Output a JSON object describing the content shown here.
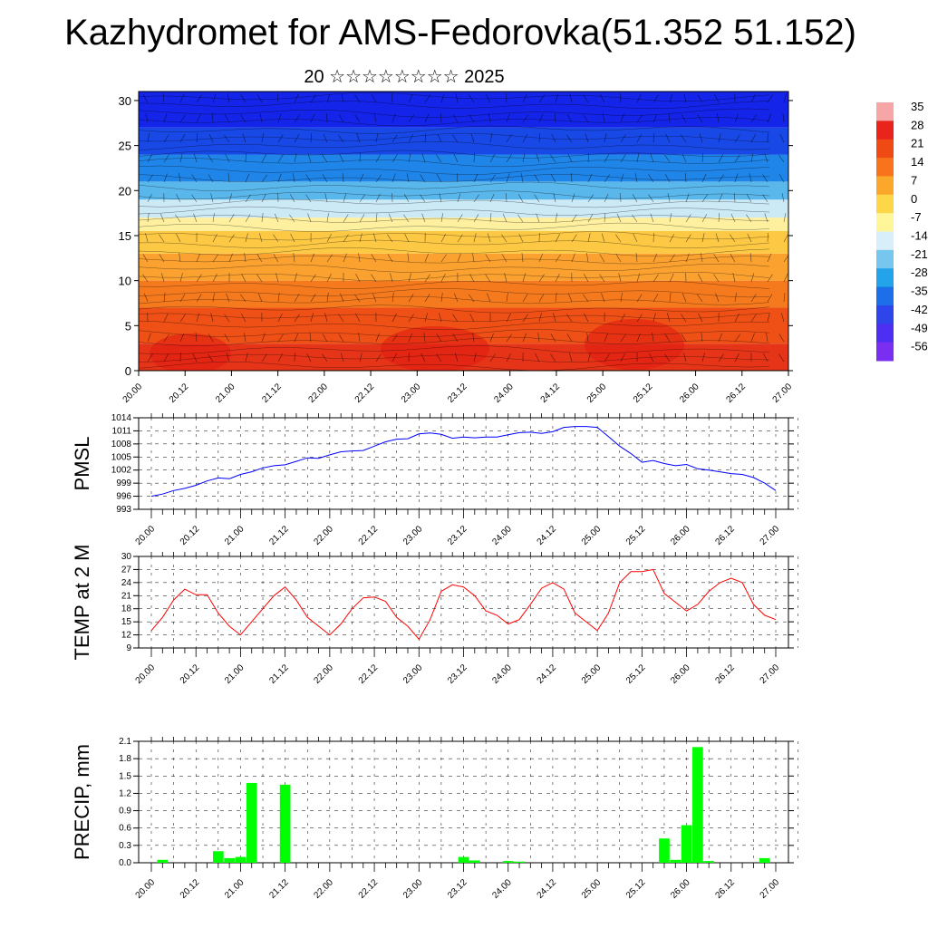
{
  "title": "Kazhydromet for AMS-Fedorovka(51.352 51.152)",
  "subtitle": "20 ☆☆☆☆☆☆☆☆ 2025",
  "time_labels": [
    "20.00",
    "20.12",
    "21.00",
    "21.12",
    "22.00",
    "22.12",
    "23.00",
    "23.12",
    "24.00",
    "24.12",
    "25.00",
    "25.12",
    "26.00",
    "26.12",
    "27.00"
  ],
  "chart_data": [
    {
      "type": "heatmap",
      "name": "cross-section",
      "y_ticks": [
        "0",
        "5",
        "10",
        "15",
        "20",
        "25",
        "30"
      ],
      "ylim": [
        0,
        31
      ],
      "colorbar": {
        "labels": [
          "35",
          "28",
          "21",
          "14",
          "7",
          "0",
          "-7",
          "-14",
          "-21",
          "-28",
          "-35",
          "-42",
          "-49",
          "-56"
        ],
        "colors": [
          "#f6a6a6",
          "#e8241c",
          "#f04a14",
          "#f7741c",
          "#fba72c",
          "#fdd748",
          "#fff69a",
          "#d8eef8",
          "#76c6ee",
          "#23a3ea",
          "#1d6fe9",
          "#2f45ec",
          "#4c2ff0",
          "#7a2ff0"
        ]
      },
      "layers": [
        {
          "z": 0,
          "color": "#e63418"
        },
        {
          "z": 3,
          "color": "#ee5016"
        },
        {
          "z": 7,
          "color": "#f57a1e"
        },
        {
          "z": 10,
          "color": "#fba130"
        },
        {
          "z": 13,
          "color": "#fdc945"
        },
        {
          "z": 15.5,
          "color": "#fff0a0"
        },
        {
          "z": 17,
          "color": "#cce9f6"
        },
        {
          "z": 19,
          "color": "#5ab7ec"
        },
        {
          "z": 21,
          "color": "#2085e8"
        },
        {
          "z": 24,
          "color": "#1848e6"
        },
        {
          "z": 27,
          "color": "#1424e8"
        },
        {
          "z": 31,
          "color": "#0e14de"
        }
      ]
    },
    {
      "type": "line",
      "ylabel": "PMSL",
      "ylim": [
        993,
        1014
      ],
      "y_ticks": [
        "993",
        "996",
        "999",
        "1002",
        "1005",
        "1008",
        "1011",
        "1014"
      ],
      "color": "#0000ff",
      "x": [
        0,
        1,
        2,
        3,
        4,
        5,
        6,
        7,
        8,
        9,
        10,
        11,
        12,
        13,
        14,
        15,
        16,
        17,
        18,
        19,
        20,
        21,
        22,
        23,
        24,
        25,
        26,
        27,
        28,
        29,
        30,
        31,
        32,
        33,
        34,
        35,
        36,
        37,
        38,
        39,
        40,
        41,
        42,
        43,
        44,
        45,
        46,
        47,
        48,
        49,
        50,
        51,
        52,
        53,
        54,
        55,
        56
      ],
      "values": [
        996,
        996.5,
        997.3,
        997.8,
        998.5,
        999.5,
        1000.2,
        1000,
        1001,
        1001.6,
        1002.5,
        1003,
        1003.2,
        1004,
        1004.8,
        1004.7,
        1005.5,
        1006.2,
        1006.4,
        1006.5,
        1007.5,
        1008.5,
        1009.1,
        1009.2,
        1010.3,
        1010.5,
        1010.2,
        1009.3,
        1009.6,
        1009.4,
        1009.6,
        1009.6,
        1010.1,
        1010.6,
        1010.7,
        1010.4,
        1010.8,
        1011.8,
        1012,
        1012,
        1011.8,
        1009.7,
        1007.5,
        1005.8,
        1003.8,
        1004.2,
        1003.5,
        1003,
        1003.3,
        1002.3,
        1002,
        1001.6,
        1001.2,
        1001,
        1000.3,
        999,
        997.3
      ]
    },
    {
      "type": "line",
      "ylabel": "TEMP at 2 M",
      "ylim": [
        9,
        30
      ],
      "y_ticks": [
        "9",
        "12",
        "15",
        "18",
        "21",
        "24",
        "27",
        "30"
      ],
      "color": "#ff0000",
      "x": [
        0,
        1,
        2,
        3,
        4,
        5,
        6,
        7,
        8,
        9,
        10,
        11,
        12,
        13,
        14,
        15,
        16,
        17,
        18,
        19,
        20,
        21,
        22,
        23,
        24,
        25,
        26,
        27,
        28,
        29,
        30,
        31,
        32,
        33,
        34,
        35,
        36,
        37,
        38,
        39,
        40,
        41,
        42,
        43,
        44,
        45,
        46,
        47,
        48,
        49,
        50,
        51,
        52,
        53,
        54,
        55,
        56
      ],
      "values": [
        13,
        16,
        20,
        22.5,
        21.2,
        21.2,
        17,
        14,
        12,
        15,
        18,
        21,
        23,
        20,
        16,
        14,
        12,
        14.5,
        18,
        20.5,
        20.7,
        19.7,
        16,
        14,
        11,
        15.5,
        22,
        23.5,
        23,
        21,
        17.5,
        16.5,
        14.5,
        15.5,
        19,
        22.7,
        24,
        22.5,
        17,
        15,
        13,
        17,
        24,
        26.5,
        26.5,
        27,
        21.5,
        19.5,
        17.5,
        19,
        22,
        24,
        25,
        24,
        19,
        16.5,
        15.5
      ]
    },
    {
      "type": "bar",
      "ylabel": "PRECIP, mm",
      "ylim": [
        0,
        2.1
      ],
      "y_ticks": [
        "0.0",
        "0.3",
        "0.6",
        "0.9",
        "1.2",
        "1.5",
        "1.8",
        "2.1"
      ],
      "color": "#00ff00",
      "x": [
        0,
        1,
        2,
        3,
        4,
        5,
        6,
        7,
        8,
        9,
        10,
        11,
        12,
        13,
        14,
        15,
        16,
        17,
        18,
        19,
        20,
        21,
        22,
        23,
        24,
        25,
        26,
        27,
        28,
        29,
        30,
        31,
        32,
        33,
        34,
        35,
        36,
        37,
        38,
        39,
        40,
        41,
        42,
        43,
        44,
        45,
        46,
        47,
        48,
        49,
        50,
        51,
        52,
        53,
        54,
        55,
        56
      ],
      "values": [
        0,
        0.05,
        0,
        0,
        0,
        0,
        0.2,
        0.08,
        0.1,
        1.38,
        0,
        0,
        1.35,
        0,
        0,
        0,
        0,
        0,
        0,
        0,
        0,
        0,
        0,
        0,
        0,
        0,
        0,
        0,
        0.1,
        0.04,
        0,
        0,
        0.03,
        0.02,
        0,
        0,
        0,
        0,
        0,
        0,
        0,
        0,
        0,
        0,
        0,
        0,
        0.42,
        0.05,
        0.65,
        2.0,
        0.03,
        0,
        0,
        0,
        0,
        0.08,
        0
      ]
    }
  ]
}
